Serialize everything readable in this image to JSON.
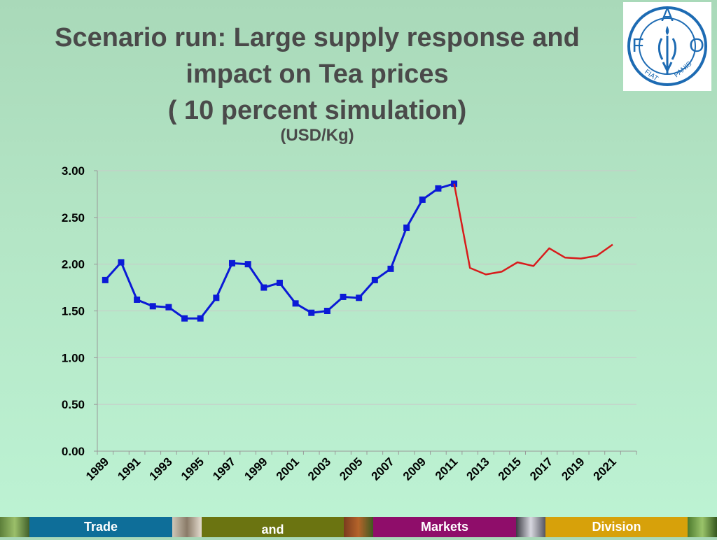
{
  "slide": {
    "title_lines": [
      "Scenario run: Large supply response and",
      "impact on Tea prices",
      "( 10 percent simulation)"
    ],
    "subtitle": "(USD/Kg)"
  },
  "logo": {
    "letters": [
      "F",
      "A",
      "O"
    ],
    "motto": "FIAT PANIS",
    "color": "#1d6bb3",
    "icon": "fao-logo-icon"
  },
  "footer": {
    "labels": [
      "Trade",
      "and",
      "Markets",
      "Division"
    ],
    "colors": [
      "#0e6e99",
      "#6b7411",
      "#8f0d6a",
      "#d7a10a"
    ]
  },
  "chart_data": {
    "type": "line",
    "title": "",
    "xlabel": "",
    "ylabel": "",
    "x": [
      1989,
      1990,
      1991,
      1992,
      1993,
      1994,
      1995,
      1996,
      1997,
      1998,
      1999,
      2000,
      2001,
      2002,
      2003,
      2004,
      2005,
      2006,
      2007,
      2008,
      2009,
      2010,
      2011,
      2012,
      2013,
      2014,
      2015,
      2016,
      2017,
      2018,
      2019,
      2020,
      2021,
      2022
    ],
    "xticks": [
      "1989",
      "1991",
      "1993",
      "1995",
      "1997",
      "1999",
      "2001",
      "2003",
      "2005",
      "2007",
      "2009",
      "2011",
      "2013",
      "2015",
      "2017",
      "2019",
      "2021"
    ],
    "yticks": [
      "0.00",
      "0.50",
      "1.00",
      "1.50",
      "2.00",
      "2.50",
      "3.00"
    ],
    "ylim": [
      0,
      3
    ],
    "grid": true,
    "legend": "none",
    "series": [
      {
        "color": "#0b1ad6",
        "markers": "square",
        "x": [
          1989,
          1990,
          1991,
          1992,
          1993,
          1994,
          1995,
          1996,
          1997,
          1998,
          1999,
          2000,
          2001,
          2002,
          2003,
          2004,
          2005,
          2006,
          2007,
          2008,
          2009,
          2010,
          2011
        ],
        "values": [
          1.83,
          2.02,
          1.62,
          1.55,
          1.54,
          1.42,
          1.42,
          1.64,
          2.01,
          2.0,
          1.75,
          1.8,
          1.58,
          1.48,
          1.5,
          1.65,
          1.64,
          1.83,
          1.95,
          2.39,
          2.69,
          2.81,
          2.86
        ]
      },
      {
        "color": "#d81b1b",
        "markers": "none",
        "x": [
          2011,
          2012,
          2013,
          2014,
          2015,
          2016,
          2017,
          2018,
          2019,
          2020,
          2021
        ],
        "values": [
          2.86,
          1.96,
          1.89,
          1.92,
          2.02,
          1.98,
          2.17,
          2.07,
          2.06,
          2.09,
          2.21
        ]
      }
    ]
  }
}
